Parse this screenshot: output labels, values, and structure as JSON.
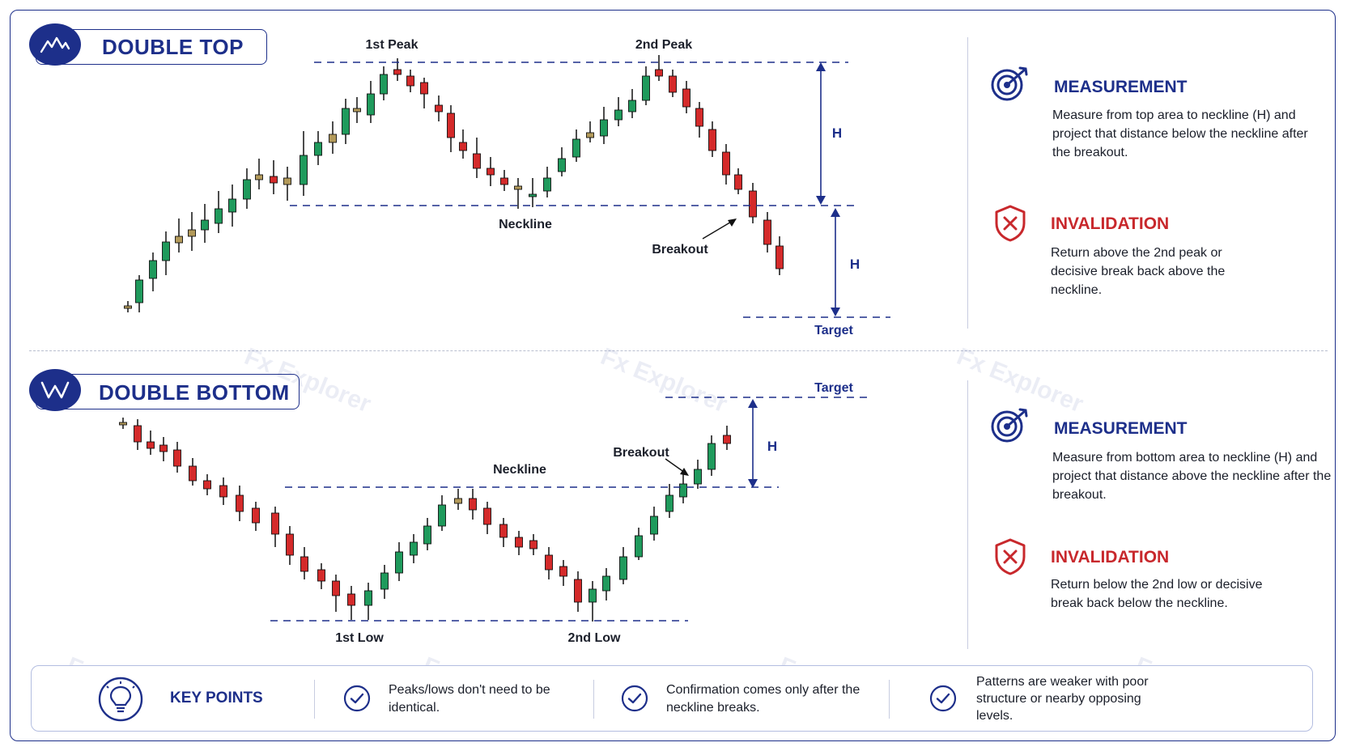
{
  "colors": {
    "navy": "#1d2f8a",
    "bull": "#1f9a5c",
    "bear": "#d42a2a",
    "neutral": "#b39a5a",
    "invalidation_red": "#c8282c"
  },
  "double_top": {
    "title": "DOUBLE TOP",
    "icon": "mountain-peaks-icon",
    "labels": {
      "first_peak": "1st Peak",
      "second_peak": "2nd Peak",
      "neckline": "Neckline",
      "breakout": "Breakout",
      "target": "Target",
      "height_upper": "H",
      "height_lower": "H"
    },
    "measurement": {
      "heading": "MEASUREMENT",
      "icon": "target-icon",
      "text": "Measure from top area to neckline (H) and project that distance below the neckline after the breakout."
    },
    "invalidation": {
      "heading": "INVALIDATION",
      "icon": "shield-x-icon",
      "text": "Return above the 2nd peak or decisive break back above the neckline."
    }
  },
  "double_bottom": {
    "title": "DOUBLE BOTTOM",
    "icon": "w-shape-icon",
    "labels": {
      "first_low": "1st Low",
      "second_low": "2nd Low",
      "neckline": "Neckline",
      "breakout": "Breakout",
      "target": "Target",
      "height": "H"
    },
    "measurement": {
      "heading": "MEASUREMENT",
      "icon": "target-icon",
      "text": "Measure from bottom area to neckline (H) and project that distance above the neckline after the breakout."
    },
    "invalidation": {
      "heading": "INVALIDATION",
      "icon": "shield-x-icon",
      "text": "Return below the 2nd low or decisive break back below the neckline."
    }
  },
  "key_points": {
    "title": "KEY POINTS",
    "icon": "lightbulb-icon",
    "items": [
      {
        "icon": "check-circle-icon",
        "text": "Peaks/lows don't need to be identical."
      },
      {
        "icon": "check-circle-icon",
        "text": "Confirmation comes only after the neckline breaks."
      },
      {
        "icon": "check-circle-icon",
        "text": "Patterns are weaker with poor structure or nearby opposing levels."
      }
    ]
  },
  "watermark": "Fx Explorer"
}
